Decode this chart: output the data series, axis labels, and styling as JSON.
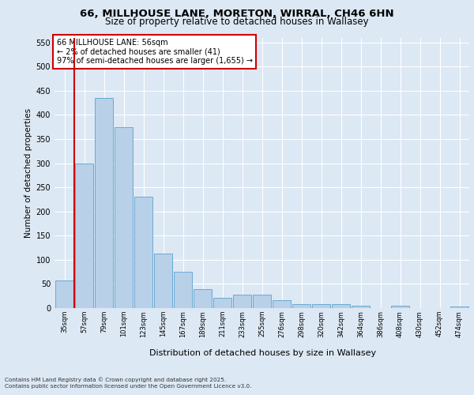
{
  "title_line1": "66, MILLHOUSE LANE, MORETON, WIRRAL, CH46 6HN",
  "title_line2": "Size of property relative to detached houses in Wallasey",
  "xlabel": "Distribution of detached houses by size in Wallasey",
  "ylabel": "Number of detached properties",
  "categories": [
    "35sqm",
    "57sqm",
    "79sqm",
    "101sqm",
    "123sqm",
    "145sqm",
    "167sqm",
    "189sqm",
    "211sqm",
    "233sqm",
    "255sqm",
    "276sqm",
    "298sqm",
    "320sqm",
    "342sqm",
    "364sqm",
    "386sqm",
    "408sqm",
    "430sqm",
    "452sqm",
    "474sqm"
  ],
  "values": [
    57,
    300,
    435,
    375,
    230,
    113,
    76,
    39,
    21,
    27,
    27,
    16,
    8,
    8,
    8,
    5,
    0,
    5,
    0,
    0,
    4
  ],
  "bar_color": "#b8d0e8",
  "bar_edge_color": "#6aaad4",
  "vline_color": "#cc0000",
  "annotation_text": "66 MILLHOUSE LANE: 56sqm\n← 2% of detached houses are smaller (41)\n97% of semi-detached houses are larger (1,655) →",
  "annotation_box_color": "#ffffff",
  "annotation_border_color": "#cc0000",
  "ylim": [
    0,
    560
  ],
  "yticks": [
    0,
    50,
    100,
    150,
    200,
    250,
    300,
    350,
    400,
    450,
    500,
    550
  ],
  "bg_color": "#dce8f4",
  "plot_bg_color": "#dce8f4",
  "footer_line1": "Contains HM Land Registry data © Crown copyright and database right 2025.",
  "footer_line2": "Contains public sector information licensed under the Open Government Licence v3.0."
}
